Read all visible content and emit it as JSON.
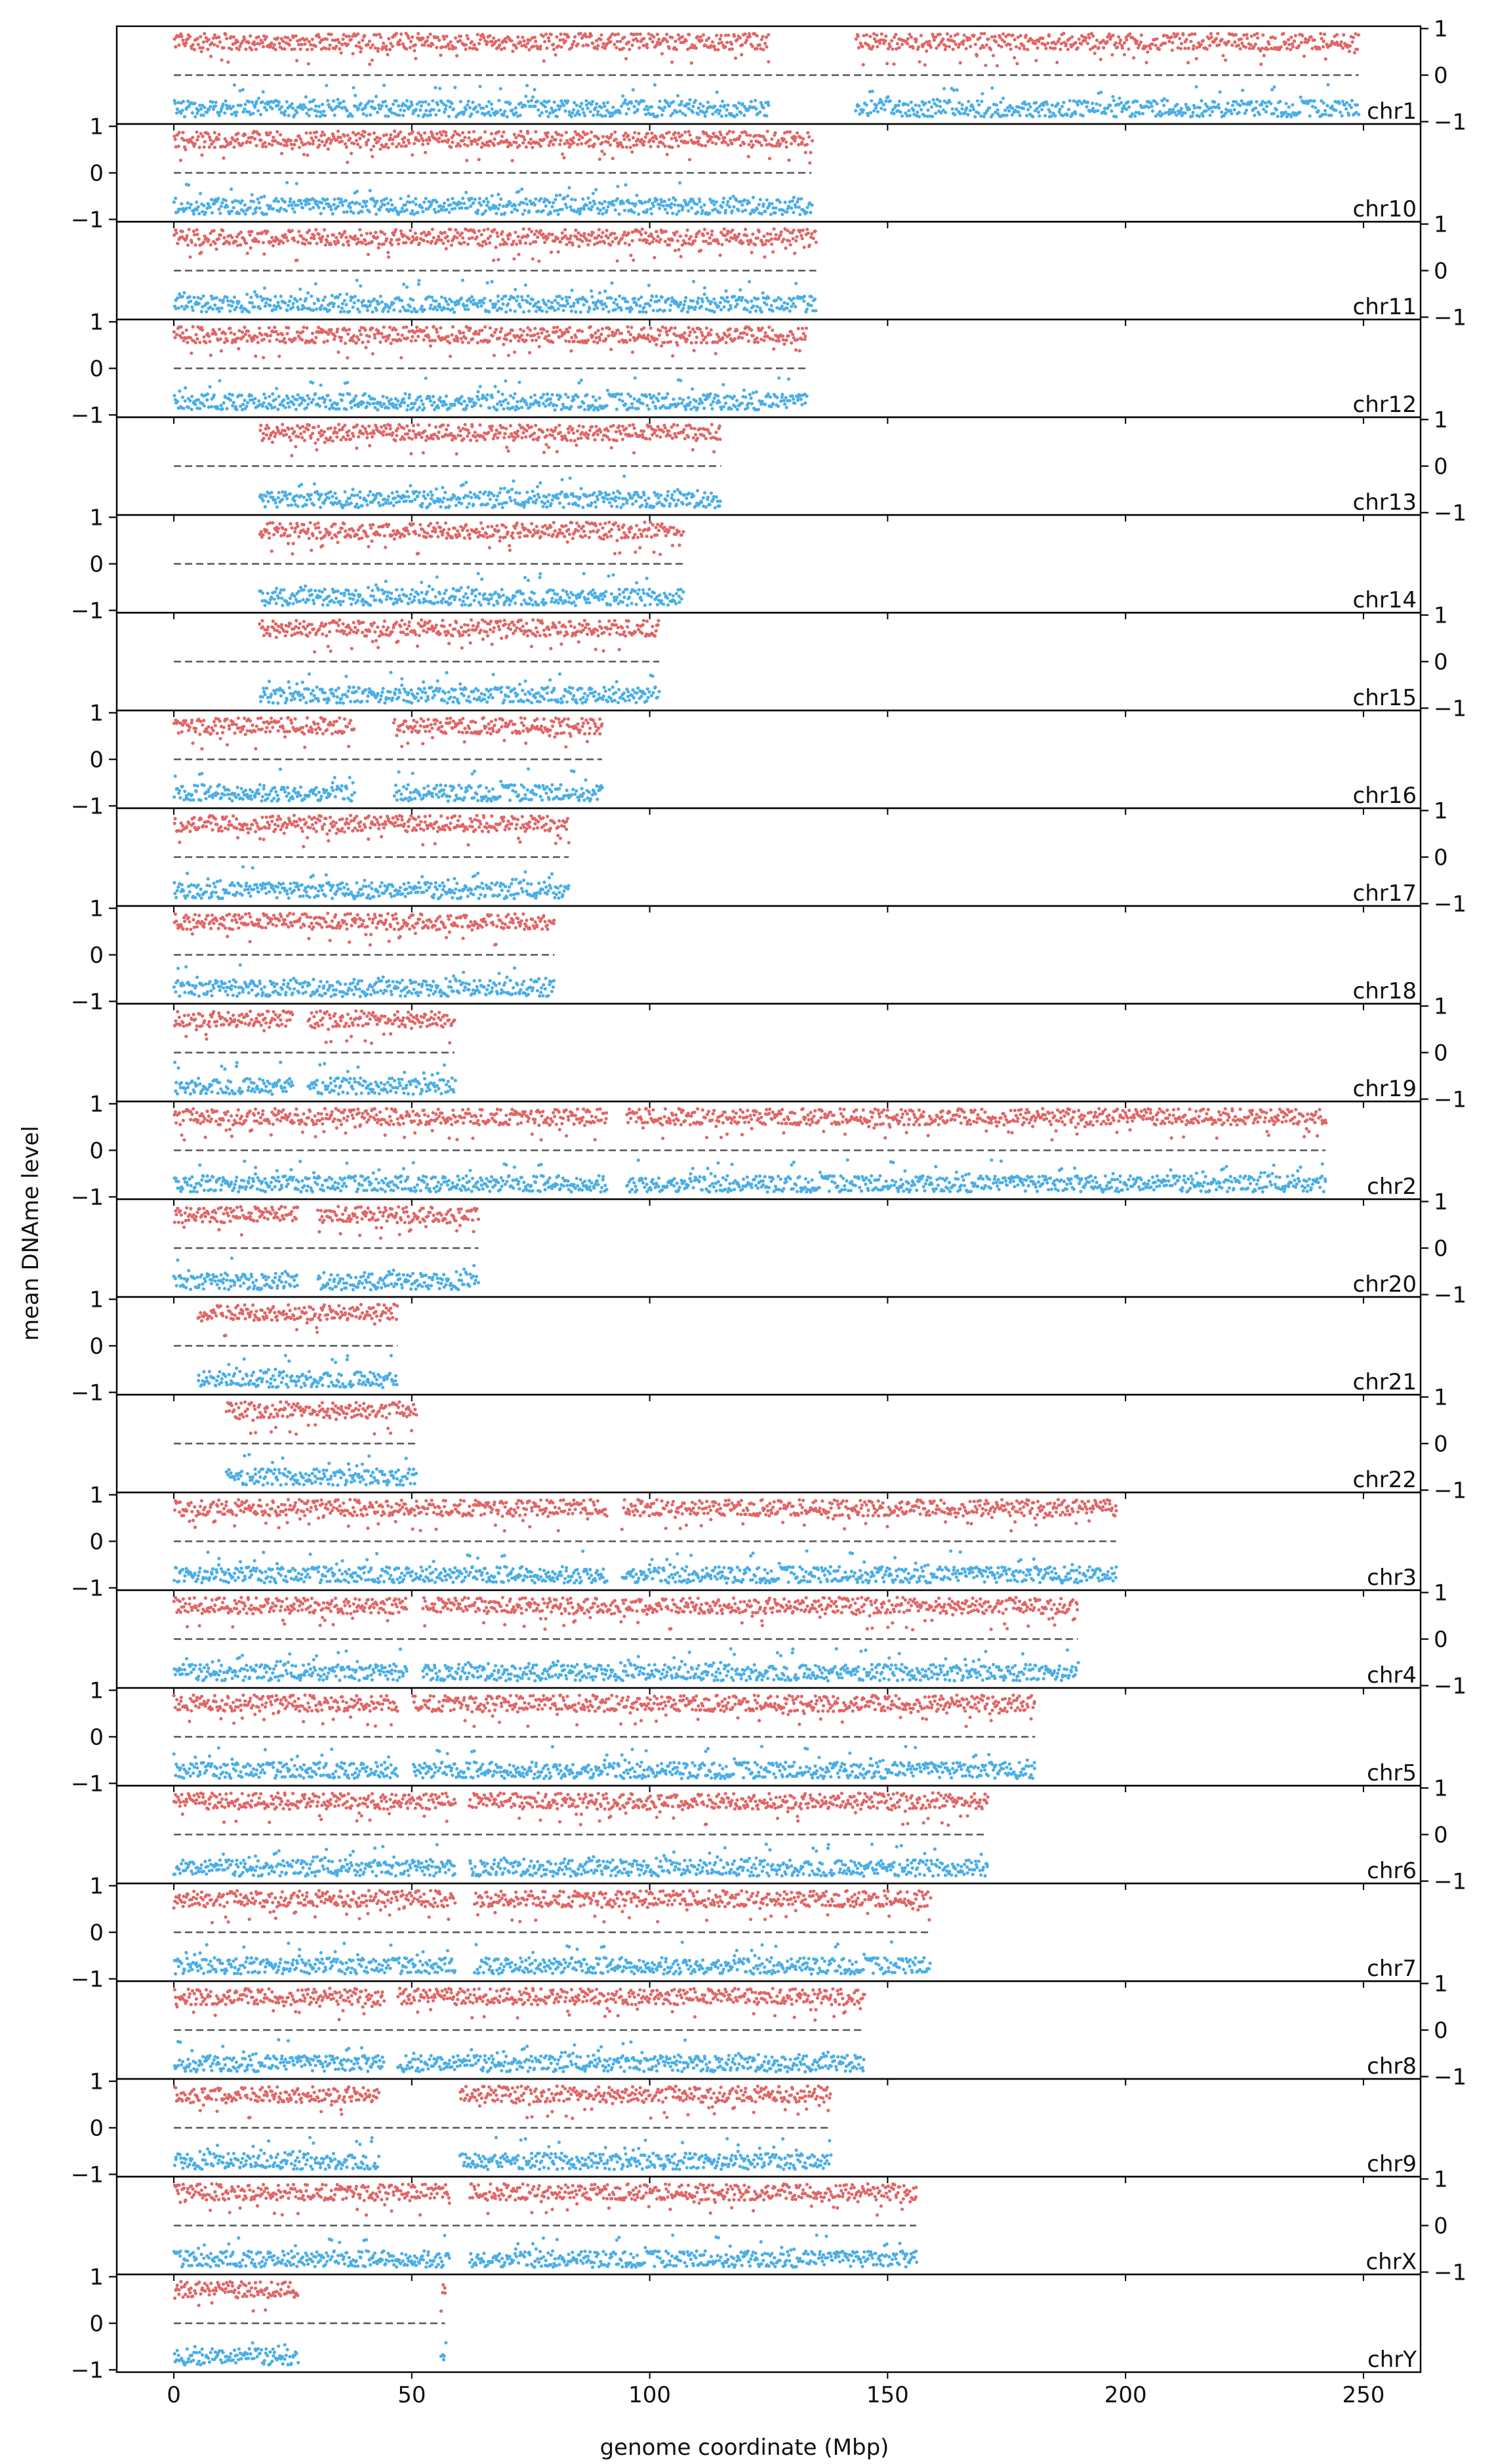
{
  "chart_data": {
    "type": "scatter",
    "xlabel": "genome coordinate (Mbp)",
    "ylabel": "mean DNAme level",
    "xlim": [
      -12,
      262
    ],
    "xticks": [
      0,
      50,
      100,
      150,
      200,
      250
    ],
    "ylim": [
      -1.05,
      1.05
    ],
    "yticks": [
      -1,
      0,
      1
    ],
    "ytick_labels": [
      "−1",
      "0",
      "1"
    ],
    "grid": false,
    "legend": "none",
    "reference_line": {
      "y": 0,
      "style": "dashed",
      "color": "#555555"
    },
    "series_colors": {
      "positive": "#e06666",
      "negative": "#4aaee6"
    },
    "panels": [
      {
        "label": "chr1",
        "length": 249,
        "gaps": [
          [
            125,
            143
          ]
        ],
        "start": 0
      },
      {
        "label": "chr10",
        "length": 134,
        "gaps": [],
        "start": 0
      },
      {
        "label": "chr11",
        "length": 135,
        "gaps": [],
        "start": 0
      },
      {
        "label": "chr12",
        "length": 133,
        "gaps": [],
        "start": 0
      },
      {
        "label": "chr13",
        "length": 115,
        "gaps": [],
        "start": 18
      },
      {
        "label": "chr14",
        "length": 107,
        "gaps": [],
        "start": 18
      },
      {
        "label": "chr15",
        "length": 102,
        "gaps": [],
        "start": 18
      },
      {
        "label": "chr16",
        "length": 90,
        "gaps": [
          [
            38,
            46
          ]
        ],
        "start": 0
      },
      {
        "label": "chr17",
        "length": 83,
        "gaps": [],
        "start": 0
      },
      {
        "label": "chr18",
        "length": 80,
        "gaps": [],
        "start": 0
      },
      {
        "label": "chr19",
        "length": 59,
        "gaps": [
          [
            25,
            28
          ]
        ],
        "start": 0
      },
      {
        "label": "chr2",
        "length": 242,
        "gaps": [
          [
            91,
            95
          ]
        ],
        "start": 0
      },
      {
        "label": "chr20",
        "length": 64,
        "gaps": [
          [
            26,
            30
          ]
        ],
        "start": 0
      },
      {
        "label": "chr21",
        "length": 47,
        "gaps": [],
        "start": 5
      },
      {
        "label": "chr22",
        "length": 51,
        "gaps": [],
        "start": 11
      },
      {
        "label": "chr3",
        "length": 198,
        "gaps": [
          [
            91,
            94
          ]
        ],
        "start": 0
      },
      {
        "label": "chr4",
        "length": 190,
        "gaps": [
          [
            49,
            52
          ]
        ],
        "start": 0
      },
      {
        "label": "chr5",
        "length": 181,
        "gaps": [
          [
            47,
            50
          ]
        ],
        "start": 0
      },
      {
        "label": "chr6",
        "length": 171,
        "gaps": [
          [
            59,
            62
          ]
        ],
        "start": 0
      },
      {
        "label": "chr7",
        "length": 159,
        "gaps": [
          [
            59,
            63
          ]
        ],
        "start": 0
      },
      {
        "label": "chr8",
        "length": 145,
        "gaps": [
          [
            44,
            47
          ]
        ],
        "start": 0
      },
      {
        "label": "chr9",
        "length": 138,
        "gaps": [
          [
            43,
            60
          ]
        ],
        "start": 0
      },
      {
        "label": "chrX",
        "length": 156,
        "gaps": [
          [
            58,
            62
          ]
        ],
        "start": 0
      },
      {
        "label": "chrY",
        "length": 57,
        "gaps": [
          [
            26,
            56
          ]
        ],
        "start": 0
      }
    ]
  }
}
